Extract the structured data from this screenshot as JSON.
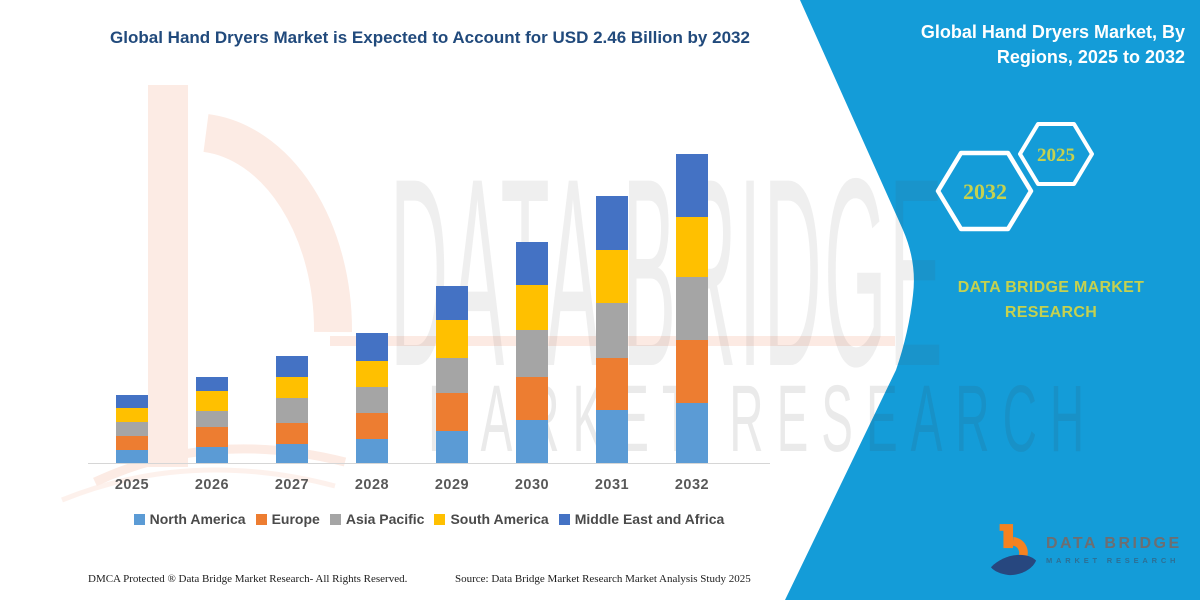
{
  "chart_data": {
    "type": "bar",
    "stacked": true,
    "title": "Global Hand Dryers Market is Expected to Account for USD 2.46 Billion by 2032",
    "unit": "USD Billion",
    "categories": [
      "2025",
      "2026",
      "2027",
      "2028",
      "2029",
      "2030",
      "2031",
      "2032"
    ],
    "series": [
      {
        "name": "North America",
        "color": "#5B9BD5",
        "values": [
          0.1,
          0.13,
          0.15,
          0.19,
          0.25,
          0.34,
          0.42,
          0.48
        ]
      },
      {
        "name": "Europe",
        "color": "#ED7D31",
        "values": [
          0.11,
          0.16,
          0.17,
          0.21,
          0.3,
          0.34,
          0.41,
          0.5
        ]
      },
      {
        "name": "Asia Pacific",
        "color": "#A5A5A5",
        "values": [
          0.11,
          0.13,
          0.2,
          0.21,
          0.28,
          0.37,
          0.44,
          0.5
        ]
      },
      {
        "name": "South America",
        "color": "#FFC000",
        "values": [
          0.11,
          0.16,
          0.17,
          0.21,
          0.3,
          0.36,
          0.42,
          0.48
        ]
      },
      {
        "name": "Middle East and Africa",
        "color": "#4472C4",
        "values": [
          0.1,
          0.11,
          0.17,
          0.22,
          0.27,
          0.34,
          0.43,
          0.5
        ]
      }
    ],
    "totals": [
      0.53,
      0.69,
      0.86,
      1.04,
      1.4,
      1.75,
      2.12,
      2.46
    ],
    "ylim": [
      0,
      2.6
    ],
    "grid": false,
    "value_axis_visible": false,
    "legend_position": "bottom"
  },
  "sidebar": {
    "title": "Global Hand Dryers Market, By Regions, 2025 to 2032",
    "hexagons": [
      {
        "label": "2032"
      },
      {
        "label": "2025"
      }
    ],
    "brand": "DATA BRIDGE MARKET RESEARCH",
    "colors": {
      "background": "#149cd8",
      "accent_text": "#c5d14f",
      "hexagon_outline": "#ffffff"
    }
  },
  "footer": {
    "left": "DMCA Protected ® Data Bridge Market Research-  All Rights Reserved.",
    "right": "Source: Data Bridge Market Research  Market Analysis Study 2025"
  },
  "logo": {
    "name": "DATA BRIDGE",
    "subtitle": "MARKET RESEARCH"
  },
  "watermark": {
    "line1": "DATA BRIDGE",
    "line2": "MARKET RESEARCH"
  }
}
